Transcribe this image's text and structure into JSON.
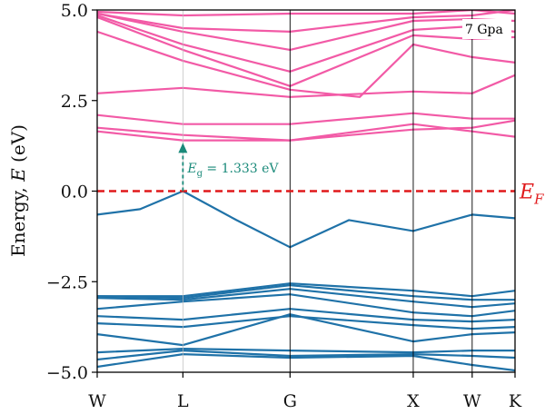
{
  "chart_data": {
    "type": "line",
    "title": "",
    "ylabel": "Energy, E (eV)",
    "ylabel_parts": {
      "text": "Energy, ",
      "symbol": "E",
      "unit": " (eV)"
    },
    "xlabel": "",
    "ylim": [
      -5.0,
      5.0
    ],
    "yticks": [
      5.0,
      2.5,
      0.0,
      -2.5,
      -5.0
    ],
    "ytick_labels": [
      "5.0",
      "2.5",
      "0.0",
      "−2.5",
      "−5.0"
    ],
    "xlim": [
      0,
      3.9
    ],
    "kpoints": [
      {
        "label": "W",
        "x": 0
      },
      {
        "label": "L",
        "x": 0.8
      },
      {
        "label": "G",
        "x": 1.8
      },
      {
        "label": "X",
        "x": 2.95
      },
      {
        "label": "W",
        "x": 3.5
      },
      {
        "label": "K",
        "x": 3.9
      }
    ],
    "grid": false,
    "legend": "none",
    "pressure_label": "7 Gpa",
    "fermi_level": {
      "energy": 0.0,
      "label": "E",
      "label_sub": "F",
      "color": "#e0191b"
    },
    "gap": {
      "value_text": "= 1.333 eV",
      "symbol": "E",
      "symbol_sub": "g",
      "from": {
        "x": 0.8,
        "y": 0.0
      },
      "to": {
        "x": 0.8,
        "y": 1.333
      },
      "color": "#1a8a7a"
    },
    "colors": {
      "conduction": "#f25aa6",
      "valence": "#1f72a8"
    },
    "series": [
      {
        "band": "valence",
        "points": [
          [
            0,
            -4.85
          ],
          [
            0.8,
            -4.5
          ],
          [
            1.8,
            -4.6
          ],
          [
            2.95,
            -4.55
          ],
          [
            3.5,
            -4.8
          ],
          [
            3.9,
            -4.95
          ]
        ]
      },
      {
        "band": "valence",
        "points": [
          [
            0,
            -4.65
          ],
          [
            0.8,
            -4.4
          ],
          [
            1.8,
            -4.55
          ],
          [
            2.95,
            -4.5
          ],
          [
            3.5,
            -4.55
          ],
          [
            3.9,
            -4.6
          ]
        ]
      },
      {
        "band": "valence",
        "points": [
          [
            0,
            -4.45
          ],
          [
            0.8,
            -4.35
          ],
          [
            1.8,
            -4.4
          ],
          [
            2.95,
            -4.45
          ],
          [
            3.5,
            -4.4
          ],
          [
            3.9,
            -4.4
          ]
        ]
      },
      {
        "band": "valence",
        "points": [
          [
            0,
            -3.95
          ],
          [
            0.8,
            -4.25
          ],
          [
            1.8,
            -3.4
          ],
          [
            2.95,
            -4.15
          ],
          [
            3.5,
            -3.95
          ],
          [
            3.9,
            -3.9
          ]
        ]
      },
      {
        "band": "valence",
        "points": [
          [
            0,
            -3.65
          ],
          [
            0.8,
            -3.75
          ],
          [
            1.8,
            -3.45
          ],
          [
            2.95,
            -3.7
          ],
          [
            3.5,
            -3.8
          ],
          [
            3.9,
            -3.75
          ]
        ]
      },
      {
        "band": "valence",
        "points": [
          [
            0,
            -3.45
          ],
          [
            0.8,
            -3.55
          ],
          [
            1.8,
            -3.25
          ],
          [
            2.95,
            -3.55
          ],
          [
            3.5,
            -3.6
          ],
          [
            3.9,
            -3.55
          ]
        ]
      },
      {
        "band": "valence",
        "points": [
          [
            0,
            -3.25
          ],
          [
            0.8,
            -3.05
          ],
          [
            1.8,
            -2.85
          ],
          [
            2.95,
            -3.35
          ],
          [
            3.5,
            -3.45
          ],
          [
            3.9,
            -3.3
          ]
        ]
      },
      {
        "band": "valence",
        "points": [
          [
            0,
            -2.95
          ],
          [
            0.8,
            -3.0
          ],
          [
            1.8,
            -2.7
          ],
          [
            2.95,
            -3.05
          ],
          [
            3.5,
            -3.2
          ],
          [
            3.9,
            -3.1
          ]
        ]
      },
      {
        "band": "valence",
        "points": [
          [
            0,
            -2.9
          ],
          [
            0.8,
            -2.95
          ],
          [
            1.8,
            -2.6
          ],
          [
            2.95,
            -2.9
          ],
          [
            3.5,
            -3.0
          ],
          [
            3.9,
            -3.0
          ]
        ]
      },
      {
        "band": "valence",
        "points": [
          [
            0,
            -2.9
          ],
          [
            0.8,
            -2.9
          ],
          [
            1.8,
            -2.55
          ],
          [
            2.95,
            -2.75
          ],
          [
            3.5,
            -2.9
          ],
          [
            3.9,
            -2.75
          ]
        ]
      },
      {
        "band": "valence",
        "points": [
          [
            0,
            -0.65
          ],
          [
            0.4,
            -0.5
          ],
          [
            0.8,
            0.0
          ],
          [
            1.3,
            -0.8
          ],
          [
            1.8,
            -1.55
          ],
          [
            2.35,
            -0.8
          ],
          [
            2.95,
            -1.1
          ],
          [
            3.5,
            -0.65
          ],
          [
            3.9,
            -0.75
          ]
        ]
      },
      {
        "band": "conduction",
        "points": [
          [
            0,
            1.65
          ],
          [
            0.8,
            1.4
          ],
          [
            1.8,
            1.4
          ],
          [
            2.95,
            1.85
          ],
          [
            3.5,
            1.65
          ],
          [
            3.9,
            1.5
          ]
        ]
      },
      {
        "band": "conduction",
        "points": [
          [
            0,
            1.75
          ],
          [
            0.8,
            1.55
          ],
          [
            1.8,
            1.4
          ],
          [
            2.95,
            1.7
          ],
          [
            3.5,
            1.75
          ],
          [
            3.9,
            1.95
          ]
        ]
      },
      {
        "band": "conduction",
        "points": [
          [
            0,
            2.1
          ],
          [
            0.8,
            1.85
          ],
          [
            1.8,
            1.85
          ],
          [
            2.95,
            2.15
          ],
          [
            3.5,
            2.0
          ],
          [
            3.9,
            2.0
          ]
        ]
      },
      {
        "band": "conduction",
        "points": [
          [
            0,
            2.7
          ],
          [
            0.8,
            2.85
          ],
          [
            1.8,
            2.6
          ],
          [
            2.95,
            2.75
          ],
          [
            3.5,
            2.7
          ],
          [
            3.9,
            3.2
          ]
        ]
      },
      {
        "band": "conduction",
        "points": [
          [
            0,
            4.4
          ],
          [
            0.8,
            3.6
          ],
          [
            1.8,
            2.8
          ],
          [
            2.45,
            2.6
          ],
          [
            2.95,
            4.05
          ],
          [
            3.5,
            3.7
          ],
          [
            3.9,
            3.55
          ]
        ]
      },
      {
        "band": "conduction",
        "points": [
          [
            0,
            4.8
          ],
          [
            0.8,
            3.9
          ],
          [
            1.8,
            2.9
          ],
          [
            2.95,
            4.3
          ],
          [
            3.5,
            4.2
          ],
          [
            3.9,
            4.25
          ]
        ]
      },
      {
        "band": "conduction",
        "points": [
          [
            0,
            4.85
          ],
          [
            0.8,
            4.05
          ],
          [
            1.8,
            3.3
          ],
          [
            2.95,
            4.45
          ],
          [
            3.5,
            4.55
          ],
          [
            3.9,
            4.4
          ]
        ]
      },
      {
        "band": "conduction",
        "points": [
          [
            0,
            4.9
          ],
          [
            0.8,
            4.4
          ],
          [
            1.8,
            3.9
          ],
          [
            2.95,
            4.7
          ],
          [
            3.5,
            4.75
          ],
          [
            3.9,
            4.7
          ]
        ]
      },
      {
        "band": "conduction",
        "points": [
          [
            0,
            4.9
          ],
          [
            0.8,
            4.5
          ],
          [
            1.8,
            4.4
          ],
          [
            2.95,
            4.8
          ],
          [
            3.5,
            4.85
          ],
          [
            3.9,
            5.0
          ]
        ]
      },
      {
        "band": "conduction",
        "points": [
          [
            0,
            4.95
          ],
          [
            0.8,
            4.85
          ],
          [
            1.8,
            4.9
          ],
          [
            2.95,
            4.9
          ],
          [
            3.5,
            5.0
          ],
          [
            3.9,
            4.9
          ]
        ]
      }
    ]
  }
}
